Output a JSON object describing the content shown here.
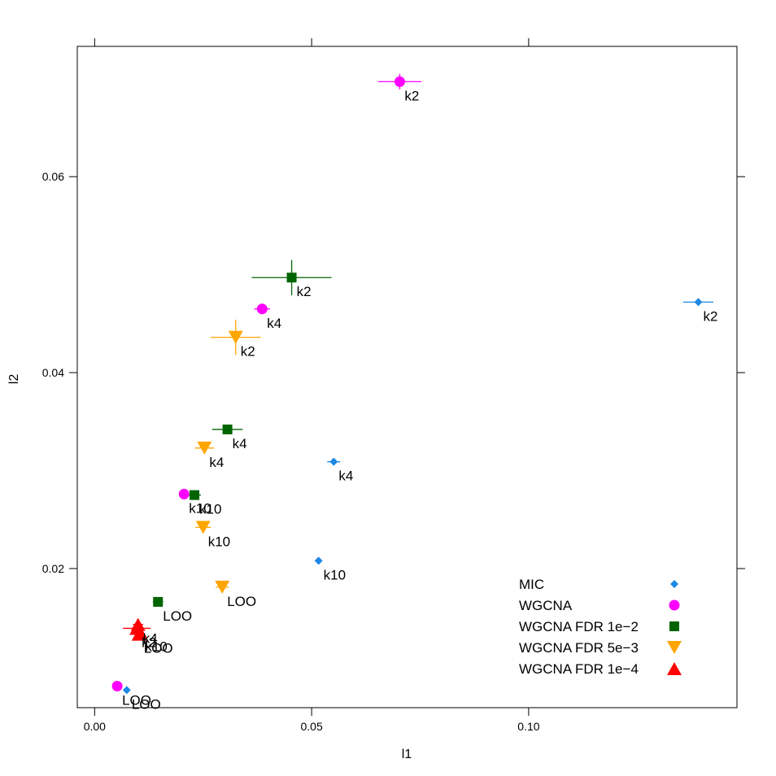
{
  "chart_data": {
    "type": "scatter",
    "title": "",
    "xlabel": "l1",
    "ylabel": "l2",
    "xlim": [
      -0.004,
      0.148
    ],
    "ylim": [
      0.0058,
      0.0733
    ],
    "xticks": [
      {
        "value": 0.0,
        "label": "0.00"
      },
      {
        "value": 0.05,
        "label": "0.05"
      },
      {
        "value": 0.1,
        "label": "0.10"
      }
    ],
    "yticks": [
      {
        "value": 0.02,
        "label": "0.02"
      },
      {
        "value": 0.04,
        "label": "0.04"
      },
      {
        "value": 0.06,
        "label": "0.06"
      }
    ],
    "grid": false,
    "legend_position": "bottom-right",
    "series": [
      {
        "name": "MIC",
        "color": "#1e88e5",
        "marker": "diamond",
        "points": [
          {
            "label": "k2",
            "x": 0.1391,
            "y": 0.0472,
            "xerr": 0.0035,
            "yerr": 0
          },
          {
            "label": "k4",
            "x": 0.0551,
            "y": 0.0309,
            "xerr": 0.0015,
            "yerr": 0
          },
          {
            "label": "k10",
            "x": 0.0516,
            "y": 0.0208,
            "xerr": 0,
            "yerr": 0
          },
          {
            "label": "LOO",
            "x": 0.0074,
            "y": 0.0076,
            "xerr": 0,
            "yerr": 0
          }
        ]
      },
      {
        "name": "WGCNA",
        "color": "#ff00ff",
        "marker": "circle",
        "points": [
          {
            "label": "k2",
            "x": 0.0703,
            "y": 0.0697,
            "xerr": 0.005,
            "yerr": 0.0008
          },
          {
            "label": "k4",
            "x": 0.0386,
            "y": 0.0465,
            "xerr": 0.0018,
            "yerr": 0
          },
          {
            "label": "k10",
            "x": 0.0206,
            "y": 0.0276,
            "xerr": 0.0008,
            "yerr": 0
          },
          {
            "label": "LOO",
            "x": 0.0052,
            "y": 0.008,
            "xerr": 0,
            "yerr": 0
          }
        ]
      },
      {
        "name": "WGCNA FDR 1e−2",
        "color": "#006400",
        "marker": "square",
        "points": [
          {
            "label": "k2",
            "x": 0.0454,
            "y": 0.0497,
            "xerr": 0.0092,
            "yerr": 0.0018
          },
          {
            "label": "k4",
            "x": 0.0306,
            "y": 0.0342,
            "xerr": 0.0035,
            "yerr": 0.0004
          },
          {
            "label": "k10",
            "x": 0.023,
            "y": 0.0275,
            "xerr": 0.0015,
            "yerr": 0
          },
          {
            "label": "LOO",
            "x": 0.0146,
            "y": 0.0166,
            "xerr": 0.0012,
            "yerr": 0
          }
        ]
      },
      {
        "name": "WGCNA FDR 5e−3",
        "color": "#ffa500",
        "marker": "triangle-down",
        "points": [
          {
            "label": "k2",
            "x": 0.0325,
            "y": 0.0436,
            "xerr": 0.0058,
            "yerr": 0.0018
          },
          {
            "label": "k4",
            "x": 0.0253,
            "y": 0.0323,
            "xerr": 0.0022,
            "yerr": 0.0003
          },
          {
            "label": "k10",
            "x": 0.025,
            "y": 0.0242,
            "xerr": 0.0018,
            "yerr": 0.0003
          },
          {
            "label": "LOO",
            "x": 0.0294,
            "y": 0.0181,
            "xerr": 0.0015,
            "yerr": 0
          }
        ]
      },
      {
        "name": "WGCNA FDR 1e−4",
        "color": "#ff0000",
        "marker": "triangle-up",
        "points": [
          {
            "label": "k2",
            "x": 0.0097,
            "y": 0.0139,
            "xerr": 0.0032,
            "yerr": 0.0005
          },
          {
            "label": "k4",
            "x": 0.01,
            "y": 0.0143,
            "xerr": 0.0012,
            "yerr": 0.0003
          },
          {
            "label": "k10",
            "x": 0.0105,
            "y": 0.0135,
            "xerr": 0.0008,
            "yerr": 0
          },
          {
            "label": "LOO",
            "x": 0.0102,
            "y": 0.0133,
            "xerr": 0.0008,
            "yerr": 0
          }
        ]
      }
    ]
  }
}
